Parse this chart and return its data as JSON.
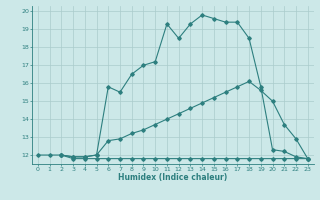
{
  "xlabel": "Humidex (Indice chaleur)",
  "bg_color": "#cce8e8",
  "grid_color": "#aacccc",
  "line_color": "#2d7f7f",
  "xlim": [
    -0.5,
    23.5
  ],
  "ylim": [
    11.5,
    20.3
  ],
  "xticks": [
    0,
    1,
    2,
    3,
    4,
    5,
    6,
    7,
    8,
    9,
    10,
    11,
    12,
    13,
    14,
    15,
    16,
    17,
    18,
    19,
    20,
    21,
    22,
    23
  ],
  "yticks": [
    12,
    13,
    14,
    15,
    16,
    17,
    18,
    19,
    20
  ],
  "line1_x": [
    0,
    1,
    2,
    3,
    4,
    5,
    6,
    7,
    8,
    9,
    10,
    11,
    12,
    13,
    14,
    15,
    16,
    17,
    18,
    19,
    20,
    21,
    22,
    23
  ],
  "line1_y": [
    12.0,
    12.0,
    12.0,
    11.8,
    11.8,
    11.8,
    11.8,
    11.8,
    11.8,
    11.8,
    11.8,
    11.8,
    11.8,
    11.8,
    11.8,
    11.8,
    11.8,
    11.8,
    11.8,
    11.8,
    11.8,
    11.8,
    11.8,
    11.8
  ],
  "line2_x": [
    2,
    3,
    4,
    5,
    6,
    7,
    8,
    9,
    10,
    11,
    12,
    13,
    14,
    15,
    16,
    17,
    18,
    19,
    20,
    21,
    22,
    23
  ],
  "line2_y": [
    12.0,
    11.9,
    11.9,
    12.0,
    12.8,
    12.9,
    13.2,
    13.4,
    13.7,
    14.0,
    14.3,
    14.6,
    14.9,
    15.2,
    15.5,
    15.8,
    16.1,
    15.6,
    15.0,
    13.7,
    12.9,
    11.8
  ],
  "line3_x": [
    2,
    3,
    4,
    5,
    6,
    7,
    8,
    9,
    10,
    11,
    12,
    13,
    14,
    15,
    16,
    17,
    18,
    19,
    20,
    21,
    22,
    23
  ],
  "line3_y": [
    12.0,
    11.9,
    11.9,
    12.0,
    15.8,
    15.5,
    16.5,
    17.0,
    17.2,
    19.3,
    18.5,
    19.3,
    19.8,
    19.6,
    19.4,
    19.4,
    18.5,
    15.8,
    12.3,
    12.2,
    11.9,
    11.8
  ]
}
